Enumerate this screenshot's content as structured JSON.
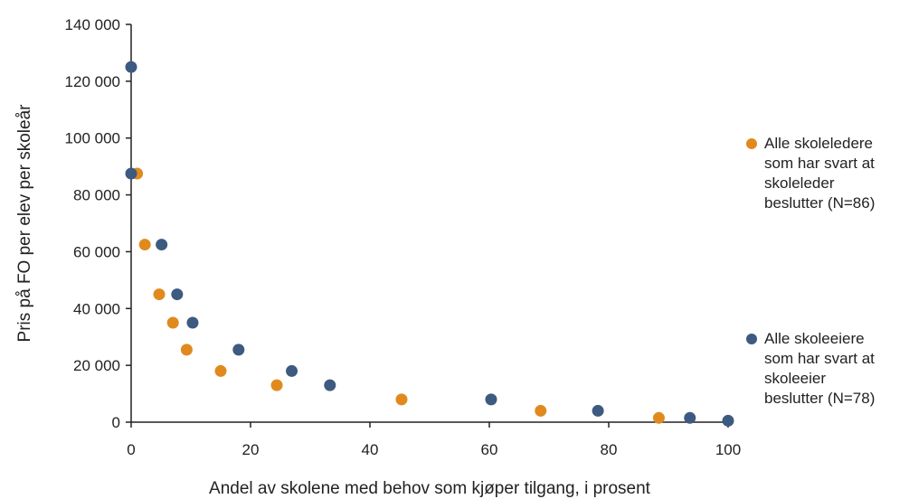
{
  "chart_data": {
    "type": "scatter",
    "xlabel": "Andel av skolene med behov som kjøper tilgang, i prosent",
    "ylabel": "Pris på FO per elev per skoleår",
    "xlim": [
      0,
      100
    ],
    "ylim": [
      0,
      140000
    ],
    "x_ticks": [
      "0",
      "20",
      "40",
      "60",
      "80",
      "100"
    ],
    "y_ticks": [
      "0",
      "20 000",
      "40 000",
      "60 000",
      "80 000",
      "100 000",
      "120 000",
      "140 000"
    ],
    "grid": false,
    "legend_position": "right",
    "series": [
      {
        "name": "Alle skoleledere som har svart at skoleleder beslutter (N=86)",
        "name_lines": [
          "Alle skoleledere",
          "som har svart at",
          "skoleleder",
          "beslutter (N=86)"
        ],
        "color": "#e08a1e",
        "points": [
          {
            "x": 1,
            "y": 87500
          },
          {
            "x": 2.3,
            "y": 62500
          },
          {
            "x": 4.7,
            "y": 45000
          },
          {
            "x": 7,
            "y": 35000
          },
          {
            "x": 9.3,
            "y": 25500
          },
          {
            "x": 15,
            "y": 18000
          },
          {
            "x": 24.4,
            "y": 13000
          },
          {
            "x": 45.3,
            "y": 8000
          },
          {
            "x": 68.6,
            "y": 4000
          },
          {
            "x": 88.4,
            "y": 1500
          }
        ]
      },
      {
        "name": "Alle skoleeiere som har svart at skoleeier beslutter (N=78)",
        "name_lines": [
          "Alle skoleeiere",
          "som har svart at",
          "skoleeier",
          "beslutter (N=78)"
        ],
        "color": "#3d5a80",
        "points": [
          {
            "x": 0,
            "y": 125000
          },
          {
            "x": 0,
            "y": 87500
          },
          {
            "x": 5.1,
            "y": 62500
          },
          {
            "x": 7.7,
            "y": 45000
          },
          {
            "x": 10.3,
            "y": 35000
          },
          {
            "x": 18,
            "y": 25500
          },
          {
            "x": 26.9,
            "y": 18000
          },
          {
            "x": 33.3,
            "y": 13000
          },
          {
            "x": 60.3,
            "y": 8000
          },
          {
            "x": 78.2,
            "y": 4000
          },
          {
            "x": 93.6,
            "y": 1500
          },
          {
            "x": 100,
            "y": 500
          }
        ]
      }
    ]
  }
}
